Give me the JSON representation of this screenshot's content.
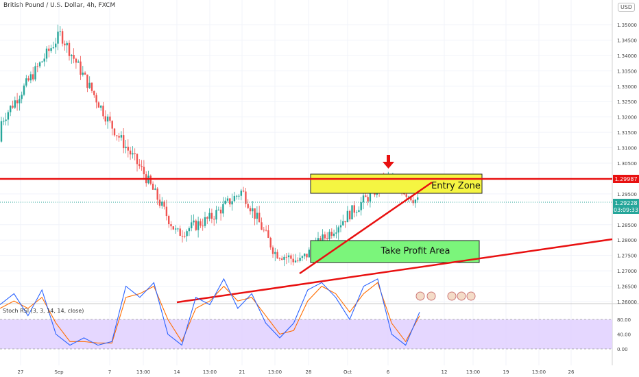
{
  "header": {
    "title": "British Pound / U.S. Dollar, 4h, FXCM",
    "currency_button": "USD"
  },
  "price_axis": {
    "ticks": [
      "1.35000",
      "1.34500",
      "1.34000",
      "1.33500",
      "1.33000",
      "1.32500",
      "1.32000",
      "1.31500",
      "1.31000",
      "1.30500",
      "1.30000",
      "1.29500",
      "1.28500",
      "1.28000",
      "1.27500",
      "1.27000",
      "1.26500",
      "1.26000"
    ],
    "resistance_label": "1.29987",
    "price_label": "1.29228",
    "countdown_label": "03:09:33"
  },
  "time_axis": {
    "labels": [
      "27",
      "Sep",
      "7",
      "13:00",
      "14",
      "13:00",
      "21",
      "13:00",
      "28",
      "Oct",
      "6",
      "12",
      "13:00",
      "19",
      "13:00",
      "26"
    ]
  },
  "annotations": {
    "entry_zone": "Entry Zone",
    "take_profit": "Take Profit Area"
  },
  "indicator": {
    "label": "Stoch RSI (3, 3, 14, 14, close)",
    "ticks": [
      "80.00",
      "40.00",
      "0.00"
    ]
  },
  "colors": {
    "up_candle": "#26a69a",
    "down_candle": "#ef5350",
    "resistance": "#e81010",
    "entry_fill": "#f5f542",
    "take_profit_fill": "#7bf57b",
    "stoch_band": "#e0d0ff",
    "k_line": "#2962ff",
    "d_line": "#ff6d00",
    "price_label_bg": "#26a69a"
  },
  "chart_data": {
    "type": "candlestick",
    "symbol": "GBP/USD",
    "timeframe": "4h",
    "ylim": [
      1.26,
      1.352
    ],
    "resistance_level": 1.29987,
    "current_price": 1.29228,
    "entry_zone": [
      1.2955,
      1.3015
    ],
    "take_profit_zone": [
      1.2725,
      1.2798
    ],
    "key_closes": [
      {
        "label": "27",
        "value": 1.318
      },
      {
        "label": "Sep",
        "value": 1.347
      },
      {
        "label": "7",
        "value": 1.318
      },
      {
        "label": "13:00",
        "value": 1.302
      },
      {
        "label": "14",
        "value": 1.282
      },
      {
        "label": "13:00",
        "value": 1.287
      },
      {
        "label": "21",
        "value": 1.296
      },
      {
        "label": "13:00",
        "value": 1.276
      },
      {
        "label": "28",
        "value": 1.273
      },
      {
        "label": "Oct",
        "value": 1.288
      },
      {
        "label": "6",
        "value": 1.3
      },
      {
        "label": "12",
        "value": 1.292
      }
    ],
    "stoch_k": [
      60,
      75,
      45,
      80,
      20,
      5,
      15,
      5,
      10,
      85,
      70,
      90,
      20,
      5,
      70,
      60,
      95,
      55,
      75,
      35,
      15,
      35,
      80,
      90,
      70,
      40,
      85,
      95,
      20,
      5,
      50
    ],
    "stoch_d": [
      55,
      65,
      55,
      70,
      35,
      10,
      10,
      8,
      8,
      70,
      75,
      85,
      40,
      10,
      55,
      65,
      85,
      65,
      70,
      45,
      20,
      25,
      65,
      85,
      75,
      50,
      75,
      90,
      35,
      10,
      45
    ]
  }
}
